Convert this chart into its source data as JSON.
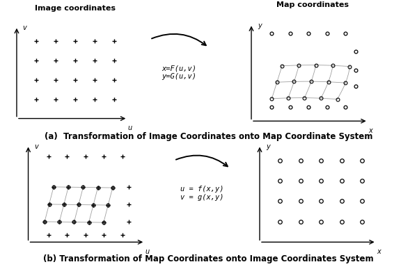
{
  "bg_color": "#ffffff",
  "title_a": "(a)  Transformation of Image Coordinates onto Map Coordinate System",
  "title_b": "(b) Transformation of Map Coordinates onto Image Coordinates System",
  "label_img_coords": "Image coordinates",
  "label_map_coords": "Map coordinates",
  "arrow_text_a": "x=F(u,v)\ny=G(u,v)",
  "arrow_text_b": "u = f(x,y)\nv = g(x,y)",
  "font_size_title": 8.5,
  "font_size_label": 8,
  "font_size_arrow": 7.5,
  "font_size_axis": 7
}
